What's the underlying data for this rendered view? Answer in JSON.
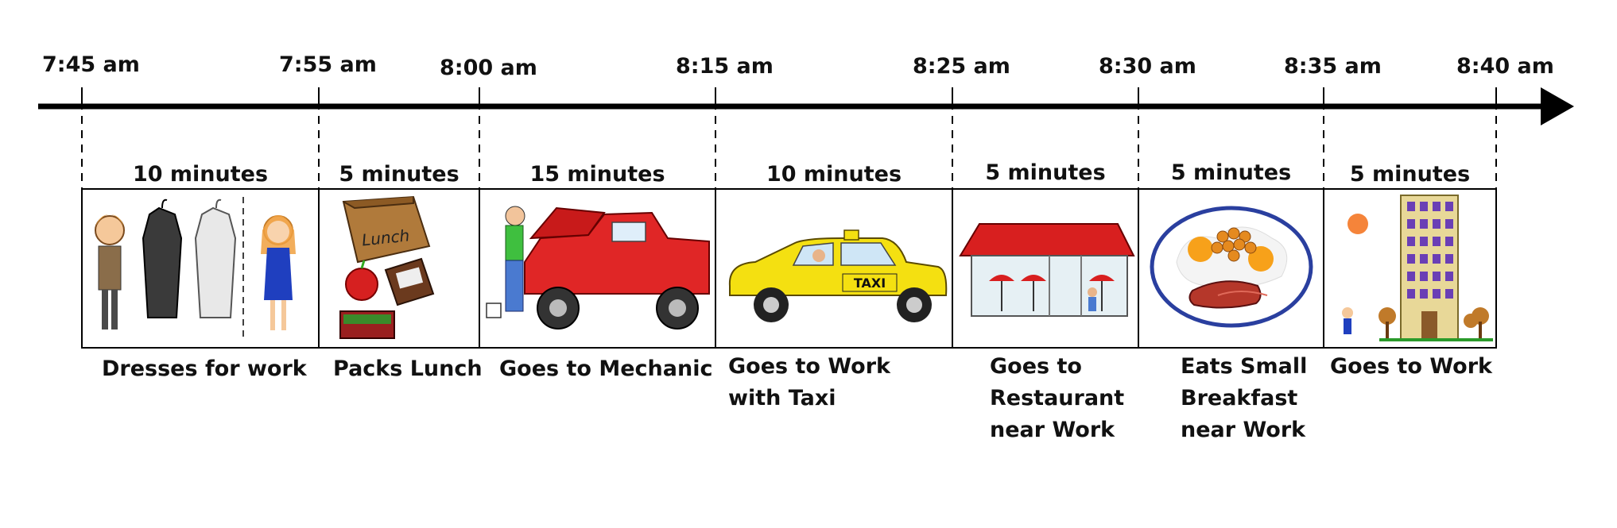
{
  "timeline": {
    "times": [
      "7:45 am",
      "7:55 am",
      "8:00 am",
      "8:15 am",
      "8:25 am",
      "8:30 am",
      "8:35 am",
      "8:40 am"
    ],
    "segments": [
      {
        "duration": "10 minutes",
        "activity": "Dresses for work",
        "icon": "clothes-dressing-icon"
      },
      {
        "duration": "5 minutes",
        "activity": "Packs Lunch",
        "icon": "lunch-bag-icon"
      },
      {
        "duration": "15 minutes",
        "activity": "Goes to Mechanic",
        "icon": "mechanic-truck-icon"
      },
      {
        "duration": "10 minutes",
        "activity": "Goes to Work with Taxi",
        "icon": "taxi-icon"
      },
      {
        "duration": "5 minutes",
        "activity": "Goes to Restaurant near Work",
        "icon": "restaurant-icon"
      },
      {
        "duration": "5 minutes",
        "activity": "Eats Small Breakfast near Work",
        "icon": "breakfast-plate-icon"
      },
      {
        "duration": "5 minutes",
        "activity": "Goes to Work",
        "icon": "office-building-icon"
      }
    ],
    "lunch_bag_text": "Lunch",
    "taxi_sign_text": "TAXI"
  }
}
